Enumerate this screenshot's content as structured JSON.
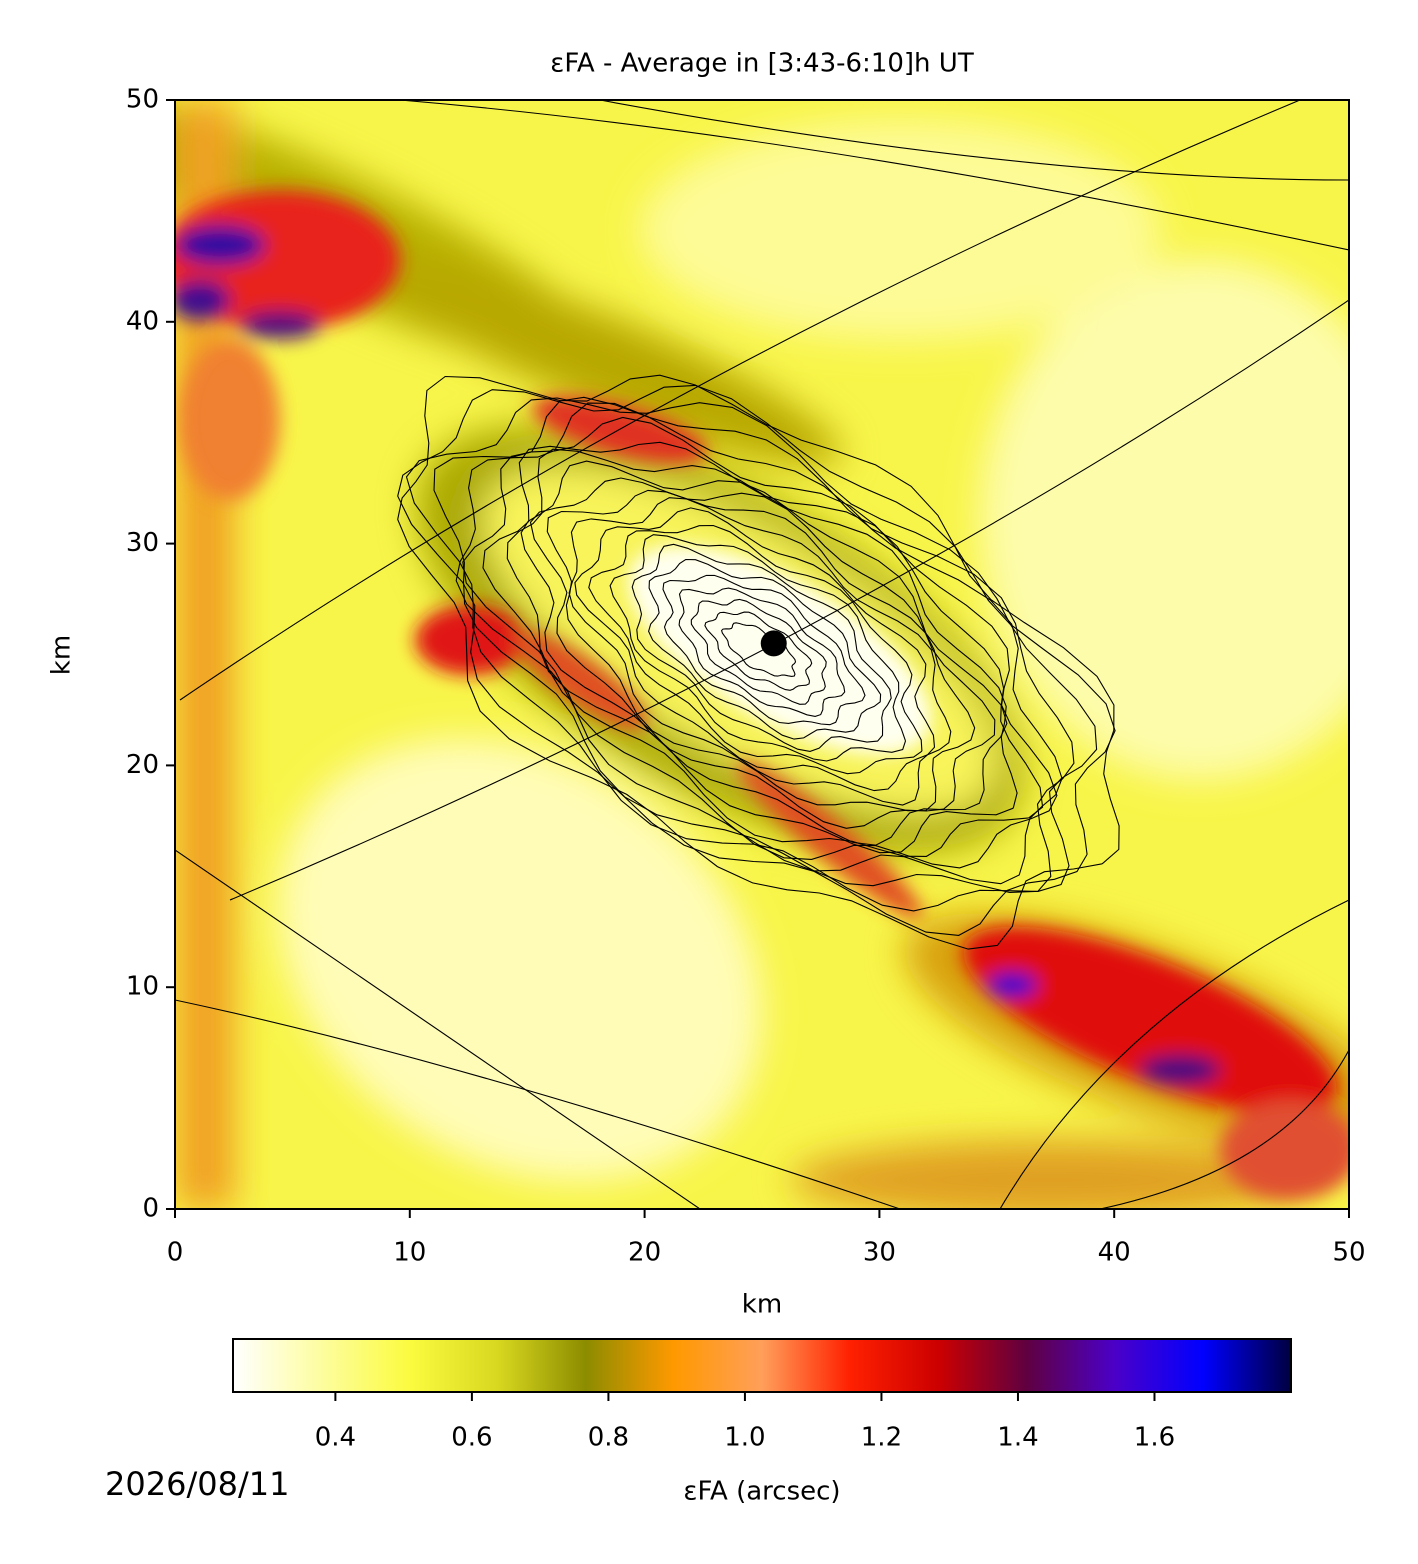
{
  "chart_data": {
    "type": "heatmap",
    "title": "εFA - Average in [3:43-6:10]h UT",
    "x_label": "km",
    "y_label": "km",
    "xlim": [
      0,
      50
    ],
    "ylim": [
      0,
      50
    ],
    "xticks": [
      0,
      10,
      20,
      30,
      40,
      50
    ],
    "yticks": [
      0,
      10,
      20,
      30,
      40,
      50
    ],
    "marker": {
      "x": 25.5,
      "y": 25.5,
      "color": "#000000"
    },
    "colorbar": {
      "label": "εFA (arcsec)",
      "lim": [
        0.25,
        1.8
      ],
      "ticks": [
        0.4,
        0.6,
        0.8,
        {
          "value": 1,
          "label": "1.0"
        },
        1.2,
        1.4,
        1.6
      ],
      "colors": [
        "#ffffff",
        "#fdfda0",
        "#fbfb40",
        "#d8d820",
        "#8c8c00",
        "#ff9900",
        "#ff9f5a",
        "#ff2000",
        "#cc0000",
        "#600040",
        "#4b00c8",
        "#0000ff",
        "#000040"
      ]
    },
    "annotation": "2026/08/11"
  }
}
